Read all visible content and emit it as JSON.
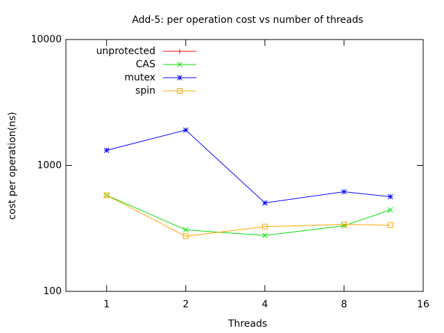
{
  "chart_data": {
    "type": "line",
    "title": "Add-5: per operation cost vs number of threads",
    "x_label": "Threads",
    "y_label": "cost per operation(ns)",
    "x": [
      1,
      2,
      4,
      8,
      12
    ],
    "xlim": [
      0.7,
      16
    ],
    "xticks": [
      1,
      2,
      4,
      8,
      16
    ],
    "xscale": "log2",
    "ylim": [
      100,
      10000
    ],
    "yticks": [
      100,
      1000,
      10000
    ],
    "yscale": "log",
    "legend": "upper left",
    "series": [
      {
        "name": "unprotected",
        "color": "#ff0000",
        "marker": "plus",
        "values": [
          null,
          null,
          null,
          null,
          null
        ]
      },
      {
        "name": "CAS",
        "color": "#00e000",
        "marker": "cross",
        "values": [
          580,
          308,
          278,
          332,
          444
        ]
      },
      {
        "name": "mutex",
        "color": "#0000ff",
        "marker": "star",
        "values": [
          1320,
          1910,
          504,
          618,
          565
        ]
      },
      {
        "name": "spin",
        "color": "#ffa500",
        "marker": "square",
        "values": [
          580,
          274,
          327,
          340,
          336
        ]
      }
    ]
  }
}
